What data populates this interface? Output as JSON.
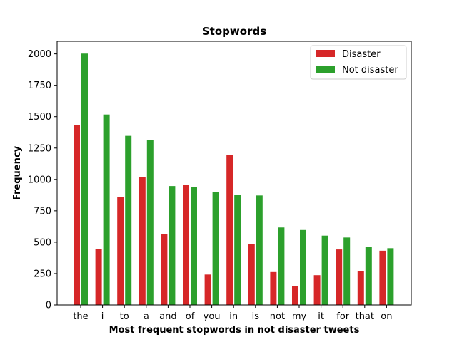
{
  "chart_data": {
    "type": "bar",
    "title": "Stopwords",
    "xlabel": "Most frequent stopwords in not disaster tweets",
    "ylabel": "Frequency",
    "categories": [
      "the",
      "i",
      "to",
      "a",
      "and",
      "of",
      "you",
      "in",
      "is",
      "not",
      "my",
      "it",
      "for",
      "that",
      "on"
    ],
    "ylim": [
      0,
      2100
    ],
    "yticks": [
      0,
      250,
      500,
      750,
      1000,
      1250,
      1500,
      1750,
      2000
    ],
    "grid": false,
    "legend": "top-right",
    "series": [
      {
        "name": "Disaster",
        "color": "#d62728",
        "values": [
          1435,
          450,
          860,
          1020,
          565,
          960,
          245,
          1195,
          490,
          265,
          155,
          240,
          445,
          270,
          435
        ]
      },
      {
        "name": "Not disaster",
        "color": "#2ca02c",
        "values": [
          2005,
          1520,
          1350,
          1315,
          950,
          940,
          905,
          880,
          875,
          620,
          600,
          555,
          540,
          465,
          455
        ]
      }
    ]
  }
}
